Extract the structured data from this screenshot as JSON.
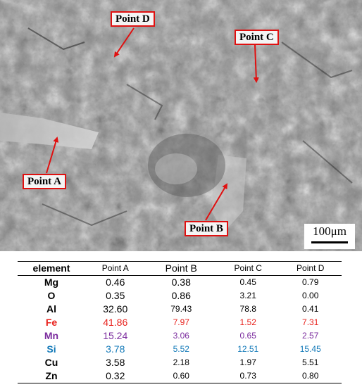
{
  "micrograph": {
    "labels": {
      "point_a": "Point A",
      "point_b": "Point B",
      "point_c": "Point C",
      "point_d": "Point D"
    },
    "scale_bar": "100μm",
    "callout_border_color": "#e01010"
  },
  "table": {
    "headers": [
      "element",
      "Point A",
      "Point B",
      "Point C",
      "Point D"
    ],
    "rows": [
      {
        "element": "Mg",
        "values": [
          "0.46",
          "0.38",
          "0.45",
          "0.79"
        ]
      },
      {
        "element": "O",
        "values": [
          "0.35",
          "0.86",
          "3.21",
          "0.00"
        ]
      },
      {
        "element": "Al",
        "values": [
          "32.60",
          "79.43",
          "78.8",
          "0.41"
        ]
      },
      {
        "element": "Fe",
        "values": [
          "41.86",
          "7.97",
          "1.52",
          "7.31"
        ],
        "color": "#e8211c"
      },
      {
        "element": "Mn",
        "values": [
          "15.24",
          "3.06",
          "0.65",
          "2.57"
        ],
        "color": "#7b2c9e"
      },
      {
        "element": "Si",
        "values": [
          "3.78",
          "5.52",
          "12.51",
          "15.45"
        ],
        "color": "#1279b8"
      },
      {
        "element": "Cu",
        "values": [
          "3.58",
          "2.18",
          "1.97",
          "5.51"
        ]
      },
      {
        "element": "Zn",
        "values": [
          "0.32",
          "0.60",
          "0.73",
          "0.80"
        ]
      }
    ]
  }
}
